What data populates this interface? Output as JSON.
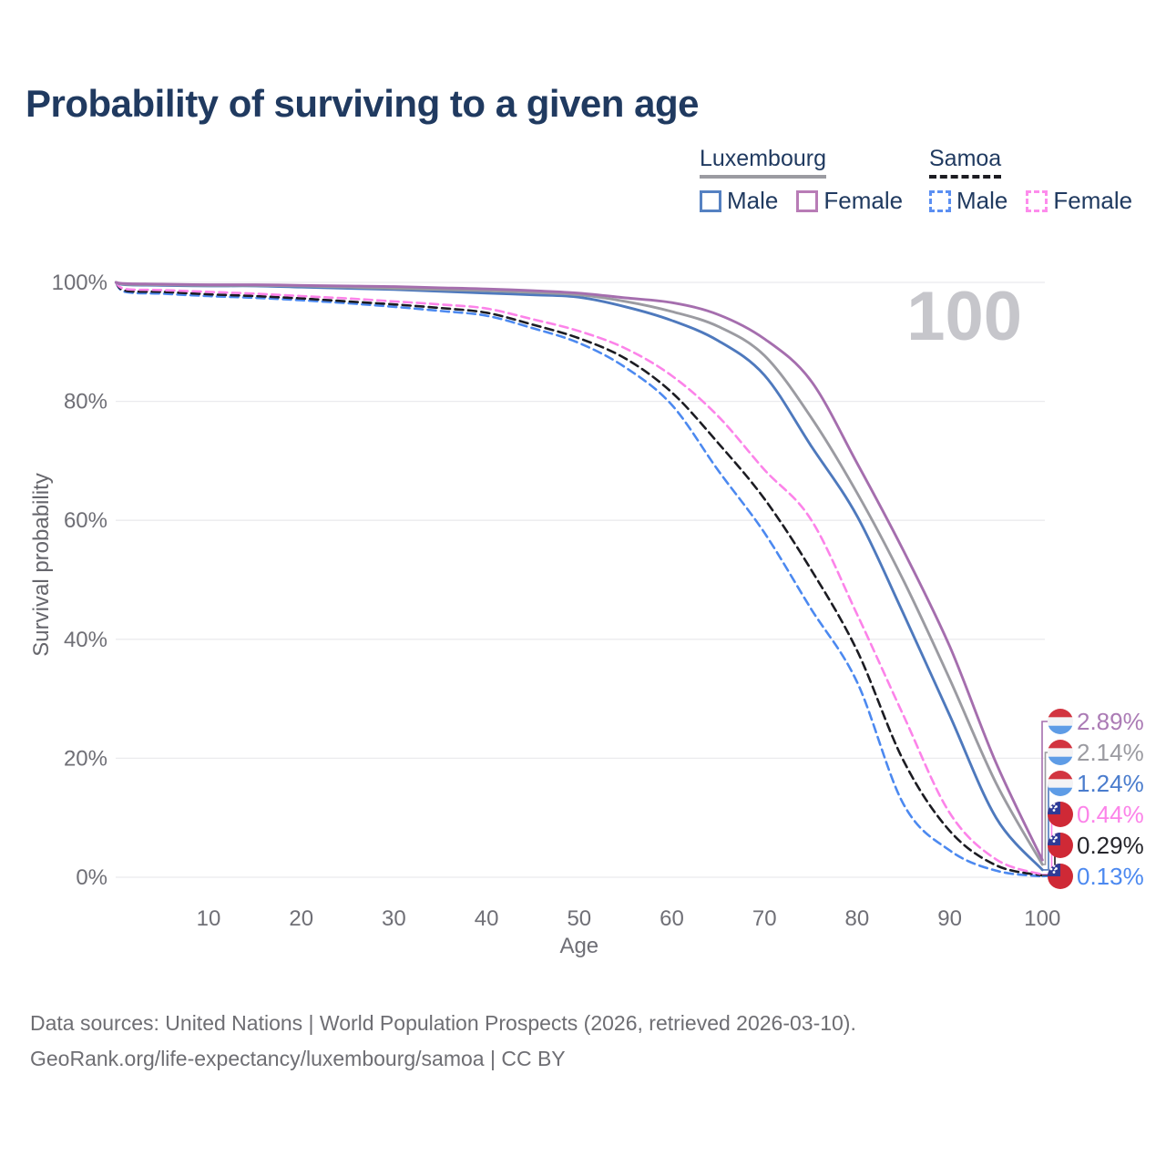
{
  "title": "Probability of surviving to a given age",
  "legend": {
    "groups": [
      {
        "label": "Luxembourg",
        "line_style": "solid",
        "underline_color": "#9b9ba1",
        "items": [
          {
            "label": "Male",
            "color": "#5581c2"
          },
          {
            "label": "Female",
            "color": "#b87cb6"
          }
        ]
      },
      {
        "label": "Samoa",
        "line_style": "dashed",
        "underline_color": "#1c1c22",
        "items": [
          {
            "label": "Male",
            "color": "#5b8ff2"
          },
          {
            "label": "Female",
            "color": "#fd8cec"
          }
        ]
      }
    ]
  },
  "chart_data": {
    "type": "line",
    "title": "Probability of surviving to a given age",
    "xlabel": "Age",
    "ylabel": "Survival probability",
    "xlim": [
      0,
      100
    ],
    "ylim": [
      0,
      100
    ],
    "grid": "horizontal",
    "legend_position": "top-right",
    "watermark": "100",
    "x_ticks": [
      10,
      20,
      30,
      40,
      50,
      60,
      70,
      80,
      90,
      100
    ],
    "y_ticks": [
      {
        "value": 0,
        "label": "0%"
      },
      {
        "value": 20,
        "label": "20%"
      },
      {
        "value": 40,
        "label": "40%"
      },
      {
        "value": 60,
        "label": "60%"
      },
      {
        "value": 80,
        "label": "80%"
      },
      {
        "value": 100,
        "label": "100%"
      }
    ],
    "x": [
      0,
      1,
      5,
      10,
      15,
      20,
      25,
      30,
      35,
      40,
      45,
      50,
      55,
      60,
      65,
      70,
      75,
      80,
      85,
      90,
      95,
      100
    ],
    "series": [
      {
        "name": "Samoa Male",
        "country": "Samoa",
        "sex": "Male",
        "color": "#4c89f0",
        "label_color": "#4c89f0",
        "dashed": true,
        "flag": "samoa",
        "end_label": "0.13%",
        "values": [
          100,
          98.4,
          98.1,
          97.7,
          97.4,
          97.0,
          96.5,
          95.9,
          95.2,
          94.4,
          92.3,
          89.8,
          85.7,
          79.4,
          68.4,
          57.9,
          45.2,
          32.8,
          12.3,
          4.5,
          1.1,
          0.13
        ]
      },
      {
        "name": "Samoa Total",
        "country": "Samoa",
        "sex": "Both",
        "color": "#1c1c22",
        "label_color": "#26262c",
        "dashed": true,
        "flag": "samoa",
        "end_label": "0.29%",
        "values": [
          100,
          98.6,
          98.4,
          98.0,
          97.7,
          97.3,
          96.8,
          96.3,
          95.7,
          94.9,
          92.9,
          90.6,
          87.2,
          81.5,
          73.0,
          63.6,
          51.8,
          38.1,
          19.6,
          7.8,
          2.0,
          0.29
        ]
      },
      {
        "name": "Samoa Female",
        "country": "Samoa",
        "sex": "Female",
        "color": "#fc83e9",
        "label_color": "#fc83e9",
        "dashed": true,
        "flag": "samoa",
        "end_label": "0.44%",
        "values": [
          100,
          98.9,
          98.7,
          98.4,
          98.1,
          97.7,
          97.3,
          96.8,
          96.3,
          95.6,
          93.8,
          91.8,
          88.9,
          84.3,
          77.5,
          68.5,
          60.2,
          44.2,
          27.2,
          10.8,
          3.0,
          0.44
        ]
      },
      {
        "name": "Luxembourg Male",
        "country": "Luxembourg",
        "sex": "Male",
        "color": "#4e79bd",
        "label_color": "#4a7ccd",
        "dashed": false,
        "flag": "luxembourg",
        "end_label": "1.24%",
        "values": [
          100,
          99.6,
          99.5,
          99.4,
          99.4,
          99.2,
          99.0,
          98.8,
          98.5,
          98.2,
          97.9,
          97.5,
          95.9,
          93.6,
          90.2,
          84.4,
          72.6,
          60.7,
          44.3,
          27.2,
          10.0,
          1.24
        ]
      },
      {
        "name": "Luxembourg Total",
        "country": "Luxembourg",
        "sex": "Both",
        "color": "#9b9ba1",
        "label_color": "#9b9ba1",
        "dashed": false,
        "flag": "luxembourg",
        "end_label": "2.14%",
        "values": [
          100,
          99.7,
          99.6,
          99.5,
          99.5,
          99.4,
          99.2,
          99.0,
          98.8,
          98.6,
          98.3,
          97.9,
          96.8,
          95.1,
          92.6,
          87.7,
          77.4,
          64.6,
          49.9,
          33.3,
          15.8,
          2.14
        ]
      },
      {
        "name": "Luxembourg Female",
        "country": "Luxembourg",
        "sex": "Female",
        "color": "#a56eae",
        "label_color": "#ab7bb5",
        "dashed": false,
        "flag": "luxembourg",
        "end_label": "2.89%",
        "values": [
          100,
          99.8,
          99.7,
          99.6,
          99.6,
          99.5,
          99.4,
          99.3,
          99.1,
          98.9,
          98.6,
          98.2,
          97.4,
          96.6,
          94.6,
          90.5,
          83.5,
          69.6,
          54.9,
          38.8,
          19.2,
          2.89
        ]
      }
    ],
    "flag_colors": {
      "luxembourg": {
        "stripes": [
          "#d23440",
          "#f3f3f5",
          "#5e9ce6"
        ]
      },
      "samoa": {
        "field": "#cf2936",
        "canton": "#2e3a96",
        "stars": "#ffffff"
      }
    }
  },
  "footer": {
    "line1": "Data sources: United Nations | World Population Prospects (2026, retrieved 2026-03-10).",
    "line2": "GeoRank.org/life-expectancy/luxembourg/samoa | CC BY"
  }
}
